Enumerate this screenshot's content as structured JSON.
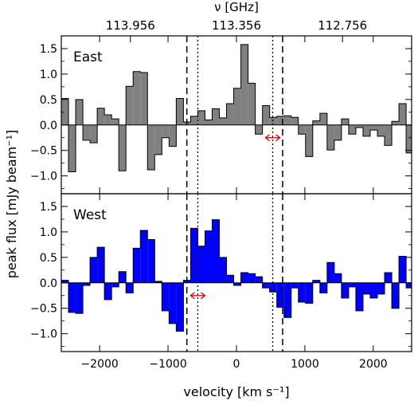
{
  "chart_data": {
    "type": "bar",
    "top_axis_label": "ν [GHz]",
    "top_ticks": [
      {
        "velocity": -1550,
        "label": "113.956"
      },
      {
        "velocity": 0,
        "label": "113.356"
      },
      {
        "velocity": 1550,
        "label": "112.756"
      }
    ],
    "xlabel": "velocity [km s⁻¹]",
    "ylabel": "peak flux [mJy beam⁻¹]",
    "xlim": [
      -2560,
      2560
    ],
    "ylim": [
      -1.35,
      1.75
    ],
    "x_ticks": [
      {
        "value": -2000,
        "label": "−2000"
      },
      {
        "value": -1000,
        "label": "−1000"
      },
      {
        "value": 0,
        "label": "0"
      },
      {
        "value": 1000,
        "label": "1000"
      },
      {
        "value": 2000,
        "label": "2000"
      }
    ],
    "y_ticks": [
      {
        "value": 1.5,
        "label": "1.5"
      },
      {
        "value": 1.0,
        "label": "1.0"
      },
      {
        "value": 0.5,
        "label": "0.5"
      },
      {
        "value": 0.0,
        "label": "0.0"
      },
      {
        "value": -0.5,
        "label": "−0.5"
      },
      {
        "value": -1.0,
        "label": "−1.0"
      }
    ],
    "dashed_lines": [
      -725,
      675
    ],
    "dotted_lines": [
      -565,
      530
    ],
    "channel_width": 105,
    "x_start": -2560,
    "panels": [
      {
        "name": "East",
        "label_color": "#000000",
        "fill": "#808080",
        "arrow_center": 530,
        "values": [
          0.52,
          -0.92,
          0.5,
          -0.3,
          -0.35,
          0.33,
          0.2,
          0.12,
          -0.9,
          0.76,
          1.05,
          1.03,
          -0.88,
          -0.58,
          -0.25,
          -0.42,
          0.52,
          0.06,
          0.17,
          0.28,
          0.1,
          0.32,
          0.14,
          0.42,
          0.72,
          1.58,
          0.82,
          -0.18,
          0.38,
          0.15,
          0.17,
          0.18,
          0.15,
          -0.18,
          -0.62,
          0.08,
          0.23,
          -0.49,
          -0.3,
          0.12,
          -0.18,
          -0.05,
          -0.22,
          -0.1,
          -0.22,
          -0.4,
          0.07,
          0.42,
          -0.55
        ]
      },
      {
        "name": "West",
        "label_color": "#0000ff",
        "fill": "#0000ff",
        "arrow_center": -565,
        "values": [
          0.05,
          -0.58,
          -0.6,
          -0.05,
          0.5,
          0.7,
          -0.33,
          -0.08,
          0.22,
          -0.2,
          0.68,
          1.03,
          0.85,
          0.03,
          -0.55,
          -0.8,
          -0.95,
          0.05,
          1.07,
          0.72,
          1.02,
          1.24,
          0.5,
          0.15,
          -0.05,
          0.2,
          0.18,
          0.12,
          -0.1,
          -0.18,
          -0.48,
          -0.68,
          -0.1,
          -0.38,
          -0.4,
          0.05,
          -0.2,
          0.4,
          0.18,
          -0.3,
          -0.08,
          -0.55,
          -0.22,
          -0.3,
          -0.22,
          0.2,
          -0.5,
          0.52,
          -0.1
        ]
      }
    ]
  }
}
